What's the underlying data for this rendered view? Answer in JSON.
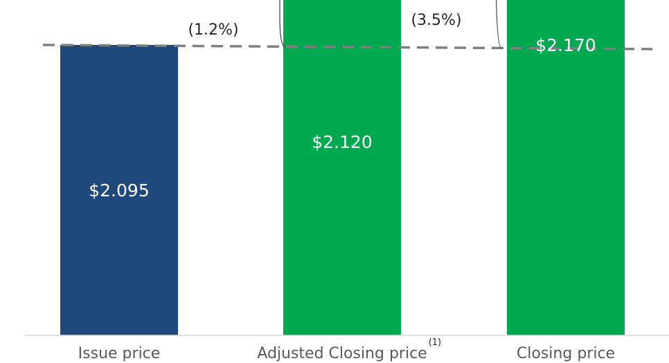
{
  "chart_data": {
    "type": "bar",
    "categories": [
      "Issue price",
      "Adjusted Closing price",
      "Closing price"
    ],
    "category_footnotes": [
      "",
      "(1)",
      ""
    ],
    "values": [
      2.095,
      2.12,
      2.17
    ],
    "value_labels": [
      "$2.095",
      "$2.120",
      "$2.170"
    ],
    "colors": [
      "#1F497D",
      "#00A84F",
      "#00A84F"
    ],
    "reference_line": {
      "value": 2.095,
      "style": "dashed",
      "color": "#7F7F7F"
    },
    "premiums": [
      {
        "label": "(1.2%)",
        "from_index": 1
      },
      {
        "label": "(3.5%)",
        "from_index": 2
      }
    ],
    "title": "",
    "xlabel": "",
    "ylabel": "",
    "grid": false,
    "legend": "none"
  }
}
